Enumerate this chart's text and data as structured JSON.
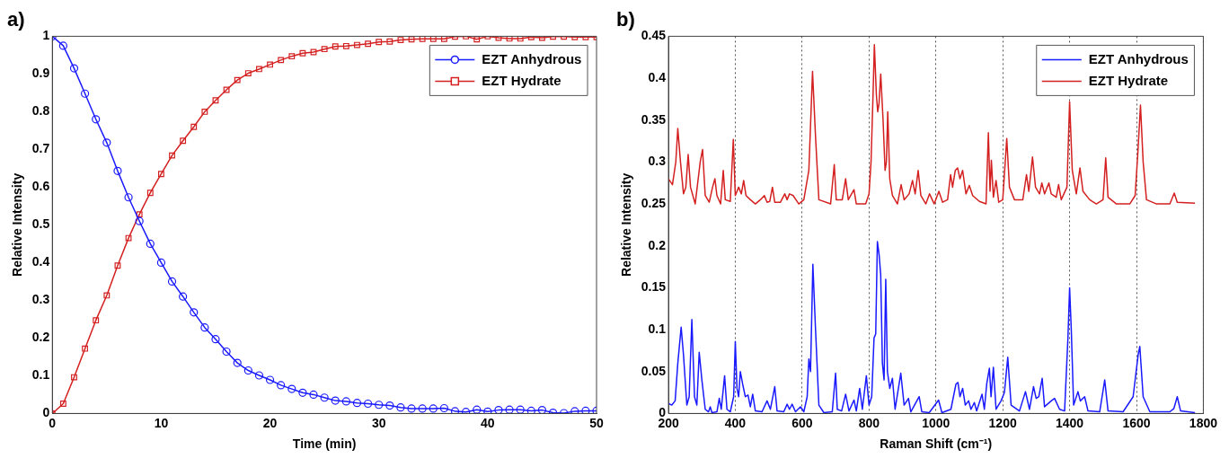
{
  "chart_data": [
    {
      "type": "line",
      "title": "a)",
      "xlabel": "Time (min)",
      "ylabel": "Relative Intensity",
      "x": [
        0,
        1,
        2,
        3,
        4,
        5,
        6,
        7,
        8,
        9,
        10,
        11,
        12,
        13,
        14,
        15,
        16,
        17,
        18,
        19,
        20,
        21,
        22,
        23,
        24,
        25,
        26,
        27,
        28,
        29,
        30,
        31,
        32,
        33,
        34,
        35,
        36,
        37,
        38,
        39,
        40,
        41,
        42,
        43,
        44,
        45,
        46,
        47,
        48,
        49,
        50
      ],
      "xlim": [
        0,
        50
      ],
      "xticks": [
        0,
        10,
        20,
        30,
        40,
        50
      ],
      "ylim": [
        0,
        1
      ],
      "yticks": [
        0,
        0.1,
        0.2,
        0.3,
        0.4,
        0.5,
        0.6,
        0.7,
        0.8,
        0.9,
        1
      ],
      "legend": "top right",
      "grid": false,
      "series": [
        {
          "name": "EZT Anhydrous",
          "color": "#1a1aff",
          "marker": "circle",
          "values": [
            1,
            0.975,
            0.915,
            0.848,
            0.78,
            0.718,
            0.643,
            0.573,
            0.51,
            0.45,
            0.4,
            0.35,
            0.31,
            0.268,
            0.228,
            0.197,
            0.164,
            0.134,
            0.114,
            0.101,
            0.089,
            0.075,
            0.065,
            0.055,
            0.05,
            0.042,
            0.034,
            0.032,
            0.028,
            0.026,
            0.023,
            0.021,
            0.016,
            0.013,
            0.013,
            0.013,
            0.014,
            0.006,
            0.004,
            0.01,
            0.005,
            0.009,
            0.01,
            0.01,
            0.007,
            0.009,
            0.002,
            0.001,
            0.006,
            0.007,
            0.007
          ]
        },
        {
          "name": "EZT Hydrate",
          "color": "#d42020",
          "marker": "square",
          "values": [
            0,
            0.026,
            0.096,
            0.172,
            0.247,
            0.313,
            0.392,
            0.465,
            0.528,
            0.585,
            0.635,
            0.684,
            0.723,
            0.76,
            0.8,
            0.83,
            0.858,
            0.884,
            0.902,
            0.913,
            0.925,
            0.937,
            0.947,
            0.955,
            0.958,
            0.966,
            0.973,
            0.974,
            0.977,
            0.98,
            0.985,
            0.986,
            0.99,
            0.992,
            0.993,
            0.993,
            0.993,
            0.999,
            1,
            0.992,
            1,
            0.996,
            0.994,
            0.994,
            0.998,
            0.996,
            0.999,
            0.999,
            0.998,
            0.998,
            0.998
          ]
        }
      ]
    },
    {
      "type": "line",
      "title": "b)",
      "xlabel": "Raman Shift (cm⁻¹)",
      "ylabel": "Relative Intensity",
      "xlim": [
        200,
        1800
      ],
      "xticks": [
        200,
        400,
        600,
        800,
        1000,
        1200,
        1400,
        1600,
        1800
      ],
      "ylim": [
        0,
        0.45
      ],
      "yticks": [
        0,
        0.05,
        0.1,
        0.15,
        0.2,
        0.25,
        0.3,
        0.35,
        0.4,
        0.45
      ],
      "legend": "top right",
      "grid": "x",
      "marker": "none",
      "series": [
        {
          "name": "EZT Anhydrous",
          "color": "#1a1aff",
          "x": [
            200,
            210,
            220,
            228,
            238,
            245,
            255,
            262,
            270,
            278,
            285,
            292,
            300,
            310,
            320,
            325,
            330,
            345,
            352,
            358,
            368,
            375,
            385,
            395,
            400,
            405,
            410,
            415,
            422,
            430,
            438,
            445,
            452,
            460,
            480,
            495,
            505,
            518,
            525,
            545,
            555,
            562,
            570,
            580,
            595,
            605,
            615,
            620,
            625,
            632,
            640,
            650,
            665,
            690,
            700,
            705,
            718,
            730,
            740,
            755,
            762,
            772,
            780,
            792,
            800,
            808,
            815,
            820,
            825,
            830,
            835,
            840,
            845,
            850,
            855,
            862,
            870,
            878,
            895,
            905,
            918,
            925,
            950,
            958,
            980,
            1008,
            1018,
            1045,
            1060,
            1066,
            1072,
            1080,
            1088,
            1098,
            1105,
            1115,
            1122,
            1138,
            1145,
            1152,
            1160,
            1165,
            1172,
            1180,
            1195,
            1205,
            1215,
            1225,
            1250,
            1268,
            1280,
            1292,
            1300,
            1308,
            1318,
            1325,
            1345,
            1355,
            1370,
            1385,
            1395,
            1400,
            1405,
            1412,
            1425,
            1432,
            1445,
            1455,
            1490,
            1505,
            1515,
            1560,
            1590,
            1605,
            1610,
            1620,
            1640,
            1700,
            1712,
            1722,
            1732,
            1775
          ],
          "values": [
            0.012,
            0.01,
            0.015,
            0.06,
            0.103,
            0.07,
            0.01,
            0.02,
            0.112,
            0.02,
            0.01,
            0.073,
            0.04,
            0.005,
            0.002,
            0.008,
            0.001,
            0.002,
            0.018,
            0.005,
            0.045,
            0.005,
            0.002,
            0.02,
            0.086,
            0.03,
            0.02,
            0.05,
            0.035,
            0.02,
            0.022,
            0.008,
            0.023,
            0.003,
            0.002,
            0.015,
            0.005,
            0.032,
            0.003,
            0.002,
            0.011,
            0.005,
            0.011,
            0.002,
            0.008,
            0.002,
            0.02,
            0.065,
            0.05,
            0.178,
            0.1,
            0.01,
            0.001,
            0.002,
            0.048,
            0.005,
            0.003,
            0.023,
            0.003,
            0.016,
            0.003,
            0.03,
            0.005,
            0.045,
            0.01,
            0.02,
            0.09,
            0.095,
            0.205,
            0.19,
            0.165,
            0.06,
            0.04,
            0.16,
            0.05,
            0.03,
            0.042,
            0.005,
            0.048,
            0.01,
            0.018,
            0.002,
            0.02,
            0.002,
            0.001,
            0.016,
            0.001,
            0.005,
            0.035,
            0.037,
            0.02,
            0.03,
            0.01,
            0.015,
            0.005,
            0.013,
            0.003,
            0.023,
            0.005,
            0.035,
            0.054,
            0.02,
            0.055,
            0.005,
            0.015,
            0.025,
            0.067,
            0.01,
            0.003,
            0.026,
            0.005,
            0.032,
            0.018,
            0.02,
            0.042,
            0.008,
            0.015,
            0.018,
            0.005,
            0.003,
            0.09,
            0.15,
            0.1,
            0.01,
            0.026,
            0.015,
            0.02,
            0.003,
            0.002,
            0.04,
            0.003,
            0.002,
            0.02,
            0.07,
            0.08,
            0.02,
            0.002,
            0.002,
            0.006,
            0.02,
            0.003,
            0.001
          ]
        },
        {
          "name": "EZT Hydrate",
          "color": "#d42020",
          "x": [
            200,
            212,
            222,
            228,
            236,
            245,
            252,
            259,
            266,
            280,
            295,
            302,
            310,
            322,
            332,
            339,
            345,
            356,
            364,
            370,
            385,
            394,
            400,
            410,
            418,
            425,
            432,
            445,
            460,
            475,
            487,
            495,
            503,
            511,
            518,
            535,
            548,
            555,
            562,
            573,
            590,
            605,
            620,
            631,
            640,
            650,
            685,
            696,
            702,
            720,
            730,
            738,
            755,
            762,
            790,
            800,
            806,
            812,
            816,
            822,
            826,
            830,
            835,
            842,
            848,
            852,
            856,
            862,
            870,
            885,
            896,
            905,
            920,
            930,
            938,
            947,
            955,
            970,
            981,
            995,
            1009,
            1020,
            1035,
            1044,
            1050,
            1058,
            1065,
            1072,
            1080,
            1090,
            1100,
            1110,
            1130,
            1150,
            1157,
            1162,
            1166,
            1172,
            1180,
            1188,
            1200,
            1212,
            1220,
            1235,
            1260,
            1271,
            1278,
            1289,
            1298,
            1310,
            1317,
            1325,
            1338,
            1345,
            1360,
            1367,
            1375,
            1392,
            1400,
            1408,
            1420,
            1431,
            1440,
            1460,
            1480,
            1500,
            1508,
            1515,
            1540,
            1580,
            1596,
            1604,
            1612,
            1620,
            1630,
            1660,
            1700,
            1713,
            1722,
            1775
          ],
          "values": [
            0.28,
            0.273,
            0.3,
            0.34,
            0.3,
            0.262,
            0.27,
            0.309,
            0.27,
            0.25,
            0.3,
            0.315,
            0.26,
            0.252,
            0.27,
            0.28,
            0.26,
            0.25,
            0.29,
            0.255,
            0.253,
            0.327,
            0.26,
            0.27,
            0.262,
            0.278,
            0.26,
            0.255,
            0.25,
            0.255,
            0.26,
            0.252,
            0.253,
            0.27,
            0.252,
            0.252,
            0.262,
            0.255,
            0.262,
            0.26,
            0.25,
            0.255,
            0.29,
            0.408,
            0.33,
            0.255,
            0.25,
            0.297,
            0.255,
            0.255,
            0.28,
            0.255,
            0.267,
            0.25,
            0.25,
            0.262,
            0.3,
            0.38,
            0.44,
            0.38,
            0.36,
            0.37,
            0.405,
            0.35,
            0.29,
            0.3,
            0.36,
            0.28,
            0.26,
            0.25,
            0.273,
            0.255,
            0.262,
            0.278,
            0.262,
            0.29,
            0.26,
            0.25,
            0.262,
            0.25,
            0.265,
            0.252,
            0.255,
            0.285,
            0.27,
            0.29,
            0.293,
            0.28,
            0.29,
            0.262,
            0.272,
            0.26,
            0.253,
            0.25,
            0.335,
            0.265,
            0.302,
            0.258,
            0.278,
            0.252,
            0.255,
            0.328,
            0.27,
            0.255,
            0.255,
            0.285,
            0.265,
            0.306,
            0.27,
            0.262,
            0.275,
            0.262,
            0.275,
            0.262,
            0.258,
            0.273,
            0.255,
            0.27,
            0.372,
            0.29,
            0.262,
            0.293,
            0.265,
            0.255,
            0.25,
            0.255,
            0.305,
            0.258,
            0.25,
            0.25,
            0.26,
            0.31,
            0.368,
            0.3,
            0.255,
            0.25,
            0.25,
            0.263,
            0.252,
            0.251
          ]
        }
      ]
    }
  ]
}
